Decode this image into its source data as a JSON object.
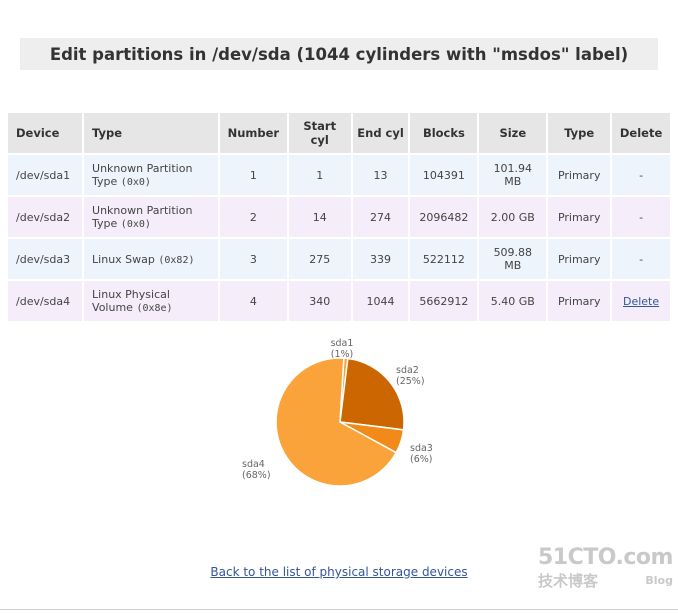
{
  "page": {
    "title": "Edit partitions in /dev/sda (1044 cylinders with \"msdos\" label)"
  },
  "table": {
    "headers": [
      "Device",
      "Type",
      "Number",
      "Start cyl",
      "End cyl",
      "Blocks",
      "Size",
      "Type",
      "Delete"
    ],
    "rows": [
      {
        "device": "/dev/sda1",
        "type": "Unknown Partition Type",
        "type_code": "(0x0)",
        "number": "1",
        "start": "1",
        "end": "13",
        "blocks": "104391",
        "size": "101.94 MB",
        "ptype": "Primary",
        "delete": "-"
      },
      {
        "device": "/dev/sda2",
        "type": "Unknown Partition Type",
        "type_code": "(0x0)",
        "number": "2",
        "start": "14",
        "end": "274",
        "blocks": "2096482",
        "size": "2.00 GB",
        "ptype": "Primary",
        "delete": "-"
      },
      {
        "device": "/dev/sda3",
        "type": "Linux Swap",
        "type_code": "(0x82)",
        "number": "3",
        "start": "275",
        "end": "339",
        "blocks": "522112",
        "size": "509.88 MB",
        "ptype": "Primary",
        "delete": "-"
      },
      {
        "device": "/dev/sda4",
        "type": "Linux Physical Volume",
        "type_code": "(0x8e)",
        "number": "4",
        "start": "340",
        "end": "1044",
        "blocks": "5662912",
        "size": "5.40 GB",
        "ptype": "Primary",
        "delete": "Delete"
      }
    ]
  },
  "chart_data": {
    "type": "pie",
    "slices": [
      {
        "label": "sda1",
        "pct_label": "(1%)",
        "value": 1,
        "color": "#faa33a"
      },
      {
        "label": "sda2",
        "pct_label": "(25%)",
        "value": 25,
        "color": "#cc6600"
      },
      {
        "label": "sda3",
        "pct_label": "(6%)",
        "value": 6,
        "color": "#f28a1a"
      },
      {
        "label": "sda4",
        "pct_label": "(68%)",
        "value": 68,
        "color": "#faa33a"
      }
    ]
  },
  "footer": {
    "back_link": "Back to the list of physical storage devices"
  },
  "watermark": {
    "site": "51CTO.com",
    "cn": "技术博客",
    "blog": "Blog"
  },
  "colors": {
    "header_bg": "#e6e6e6",
    "row_odd_bg": "#eef4fb",
    "row_even_bg": "#f5eefa",
    "link": "#335599"
  }
}
